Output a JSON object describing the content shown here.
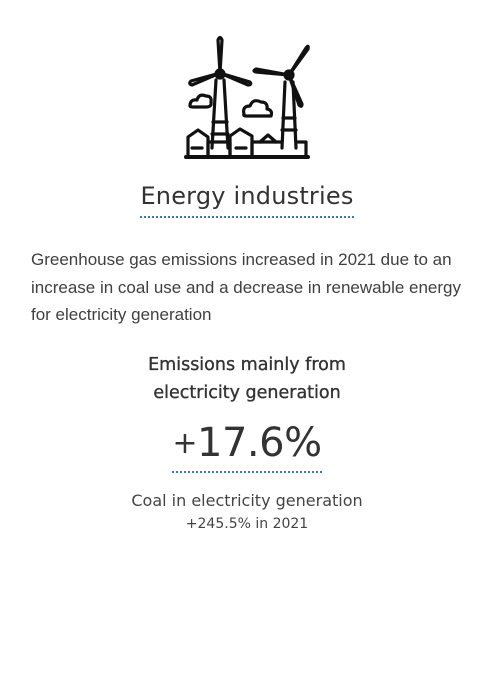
{
  "card": {
    "icon": "wind-turbines-factory-icon",
    "title": "Energy industries",
    "description": "Greenhouse gas emissions increased in 2021 due to an increase in coal use and a decrease in renewable energy for electricity generation",
    "subheading_line1": "Emissions mainly from",
    "subheading_line2": "electricity generation",
    "stat_sign": "+",
    "stat_value": "17.6%",
    "note_line1": "Coal in electricity generation",
    "note_line2": "+245.5% in 2021"
  },
  "colors": {
    "text": "#333333",
    "underline_accent": "#3a7ea6",
    "background": "#ffffff"
  }
}
